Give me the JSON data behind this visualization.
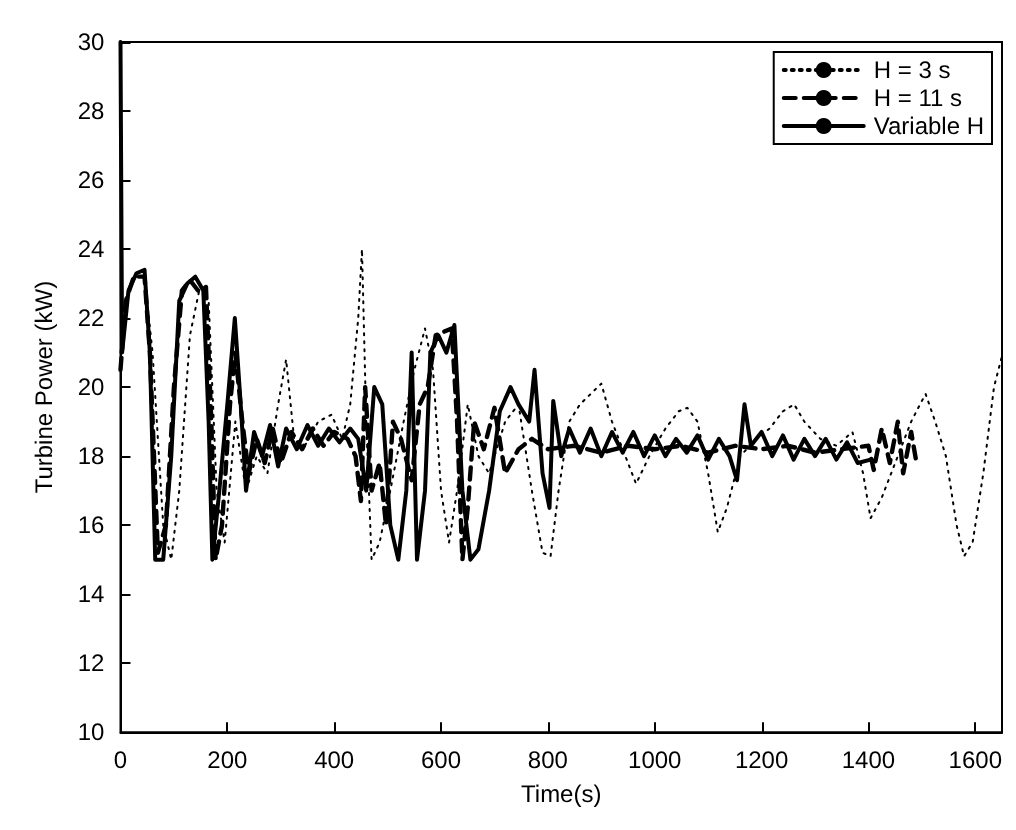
{
  "chart_data": {
    "type": "line",
    "xlabel": "Time(s)",
    "ylabel": "Turbine Power (kW)",
    "xlim": [
      0,
      1650
    ],
    "xticks": [
      0,
      200,
      400,
      600,
      800,
      1000,
      1200,
      1400,
      1600
    ],
    "ylim": [
      10,
      30
    ],
    "yticks": [
      10,
      12,
      14,
      16,
      18,
      20,
      22,
      24,
      26,
      28,
      30
    ],
    "grid": false,
    "legend": "top right",
    "marker": "none",
    "series": [
      {
        "name": "H = 3 s",
        "color": "#000000",
        "line_style": "dotted",
        "x": [
          0,
          10,
          25,
          45,
          60,
          80,
          95,
          110,
          130,
          150,
          165,
          180,
          195,
          215,
          235,
          255,
          275,
          295,
          310,
          325,
          345,
          370,
          395,
          415,
          430,
          445,
          452,
          460,
          470,
          485,
          505,
          530,
          550,
          570,
          585,
          600,
          615,
          630,
          650,
          670,
          690,
          720,
          745,
          770,
          790,
          805,
          820,
          840,
          860,
          880,
          900,
          920,
          945,
          965,
          990,
          1020,
          1045,
          1061,
          1080,
          1100,
          1118,
          1135,
          1160,
          1190,
          1215,
          1240,
          1261,
          1280,
          1310,
          1340,
          1370,
          1390,
          1404,
          1425,
          1450,
          1480,
          1500,
          1507,
          1525,
          1545,
          1565,
          1579,
          1595,
          1615,
          1635,
          1650
        ],
        "values": [
          21,
          22.5,
          23.2,
          23.2,
          21,
          16,
          15,
          17,
          21.5,
          23,
          22.5,
          17,
          15.5,
          19,
          17,
          18,
          17.5,
          19.5,
          20.8,
          18.5,
          18.3,
          19,
          19.2,
          18.5,
          19.5,
          22,
          24,
          19,
          15,
          15.5,
          17,
          19,
          20.5,
          21.7,
          20.5,
          17,
          15.5,
          17,
          19.5,
          18,
          17.5,
          19,
          19.5,
          17,
          15.2,
          15.1,
          17,
          19,
          19.5,
          19.8,
          20.1,
          19,
          18,
          17.2,
          18,
          18.8,
          19.3,
          19.4,
          19,
          17.5,
          15.8,
          16.5,
          18,
          18.5,
          18.8,
          19.3,
          19.5,
          19,
          18.5,
          18.3,
          18.7,
          17.5,
          16.2,
          16.8,
          17.8,
          19,
          19.6,
          19.8,
          19,
          18,
          16,
          15.1,
          15.5,
          17.5,
          20,
          20.9
        ]
      },
      {
        "name": "H = 11 s",
        "color": "#000000",
        "line_style": "dashed",
        "x": [
          0,
          10,
          25,
          45,
          55,
          70,
          85,
          100,
          115,
          130,
          145,
          160,
          170,
          178,
          190,
          205,
          215,
          228,
          240,
          255,
          270,
          285,
          300,
          320,
          340,
          360,
          380,
          400,
          425,
          440,
          450,
          458,
          470,
          485,
          497,
          510,
          525,
          545,
          560,
          575,
          590,
          605,
          620,
          630,
          640,
          650,
          662,
          680,
          700,
          720,
          745,
          770,
          800,
          850,
          900,
          950,
          1000,
          1050,
          1100,
          1150,
          1200,
          1250,
          1300,
          1350,
          1400,
          1410,
          1425,
          1440,
          1455,
          1465,
          1480,
          1490
        ],
        "values": [
          20.5,
          22.5,
          23.2,
          23.2,
          21,
          15.2,
          16,
          20,
          22.8,
          23.1,
          22.8,
          22.9,
          19,
          15,
          16,
          19.5,
          21,
          19,
          17.5,
          18.5,
          17.8,
          18.8,
          17.8,
          18.7,
          18.2,
          18.8,
          18.3,
          18.7,
          18.5,
          18,
          16.7,
          20,
          17,
          17.8,
          16,
          19,
          18.5,
          17.3,
          19.5,
          20,
          21.5,
          21.6,
          21.7,
          19,
          15,
          16.5,
          19,
          18.2,
          19.4,
          17.5,
          18.2,
          18.5,
          18.2,
          18.3,
          18.1,
          18.3,
          18.2,
          18.3,
          18.1,
          18.3,
          18.2,
          18.3,
          18.1,
          18.2,
          18.3,
          17.6,
          18.8,
          17.8,
          19,
          17.5,
          18.7,
          17.8
        ]
      },
      {
        "name": "Variable H",
        "color": "#000000",
        "line_style": "solid",
        "x": [
          0,
          3,
          15,
          30,
          45,
          55,
          65,
          80,
          95,
          110,
          125,
          140,
          155,
          165,
          172,
          185,
          200,
          214,
          225,
          235,
          250,
          265,
          280,
          295,
          310,
          330,
          350,
          370,
          390,
          410,
          430,
          445,
          460,
          475,
          490,
          505,
          520,
          535,
          545,
          555,
          570,
          580,
          595,
          610,
          625,
          640,
          655,
          670,
          690,
          710,
          730,
          745,
          765,
          775,
          790,
          803,
          810,
          825,
          840,
          860,
          880,
          900,
          920,
          940,
          960,
          980,
          1000,
          1020,
          1040,
          1060,
          1080,
          1100,
          1120,
          1140,
          1154,
          1168,
          1180,
          1200,
          1220,
          1240,
          1260,
          1280,
          1300,
          1320,
          1340,
          1360,
          1380,
          1404
        ],
        "values": [
          30,
          21,
          22.8,
          23.3,
          23.4,
          21,
          15,
          15,
          18,
          22.5,
          23,
          23.2,
          22.8,
          19,
          15,
          17,
          19.5,
          22,
          19.5,
          17,
          18.7,
          18,
          18.9,
          17.7,
          18.8,
          18.2,
          18.9,
          18.3,
          18.8,
          18.4,
          18.8,
          18.5,
          17,
          20,
          19.5,
          16,
          15,
          17,
          21,
          15,
          17,
          21,
          21.5,
          21,
          21.8,
          17,
          15,
          15.3,
          17,
          19.3,
          20,
          19.5,
          19,
          20.5,
          17.5,
          16.5,
          19.6,
          18,
          18.8,
          18.1,
          18.8,
          18,
          18.7,
          18.1,
          18.7,
          18,
          18.6,
          18,
          18.5,
          18.1,
          18.6,
          17.9,
          18.5,
          18,
          17.3,
          19.5,
          18.3,
          18.7,
          18,
          18.6,
          17.9,
          18.5,
          18,
          18.5,
          17.9,
          18.4,
          17.8,
          17.9
        ]
      }
    ]
  }
}
